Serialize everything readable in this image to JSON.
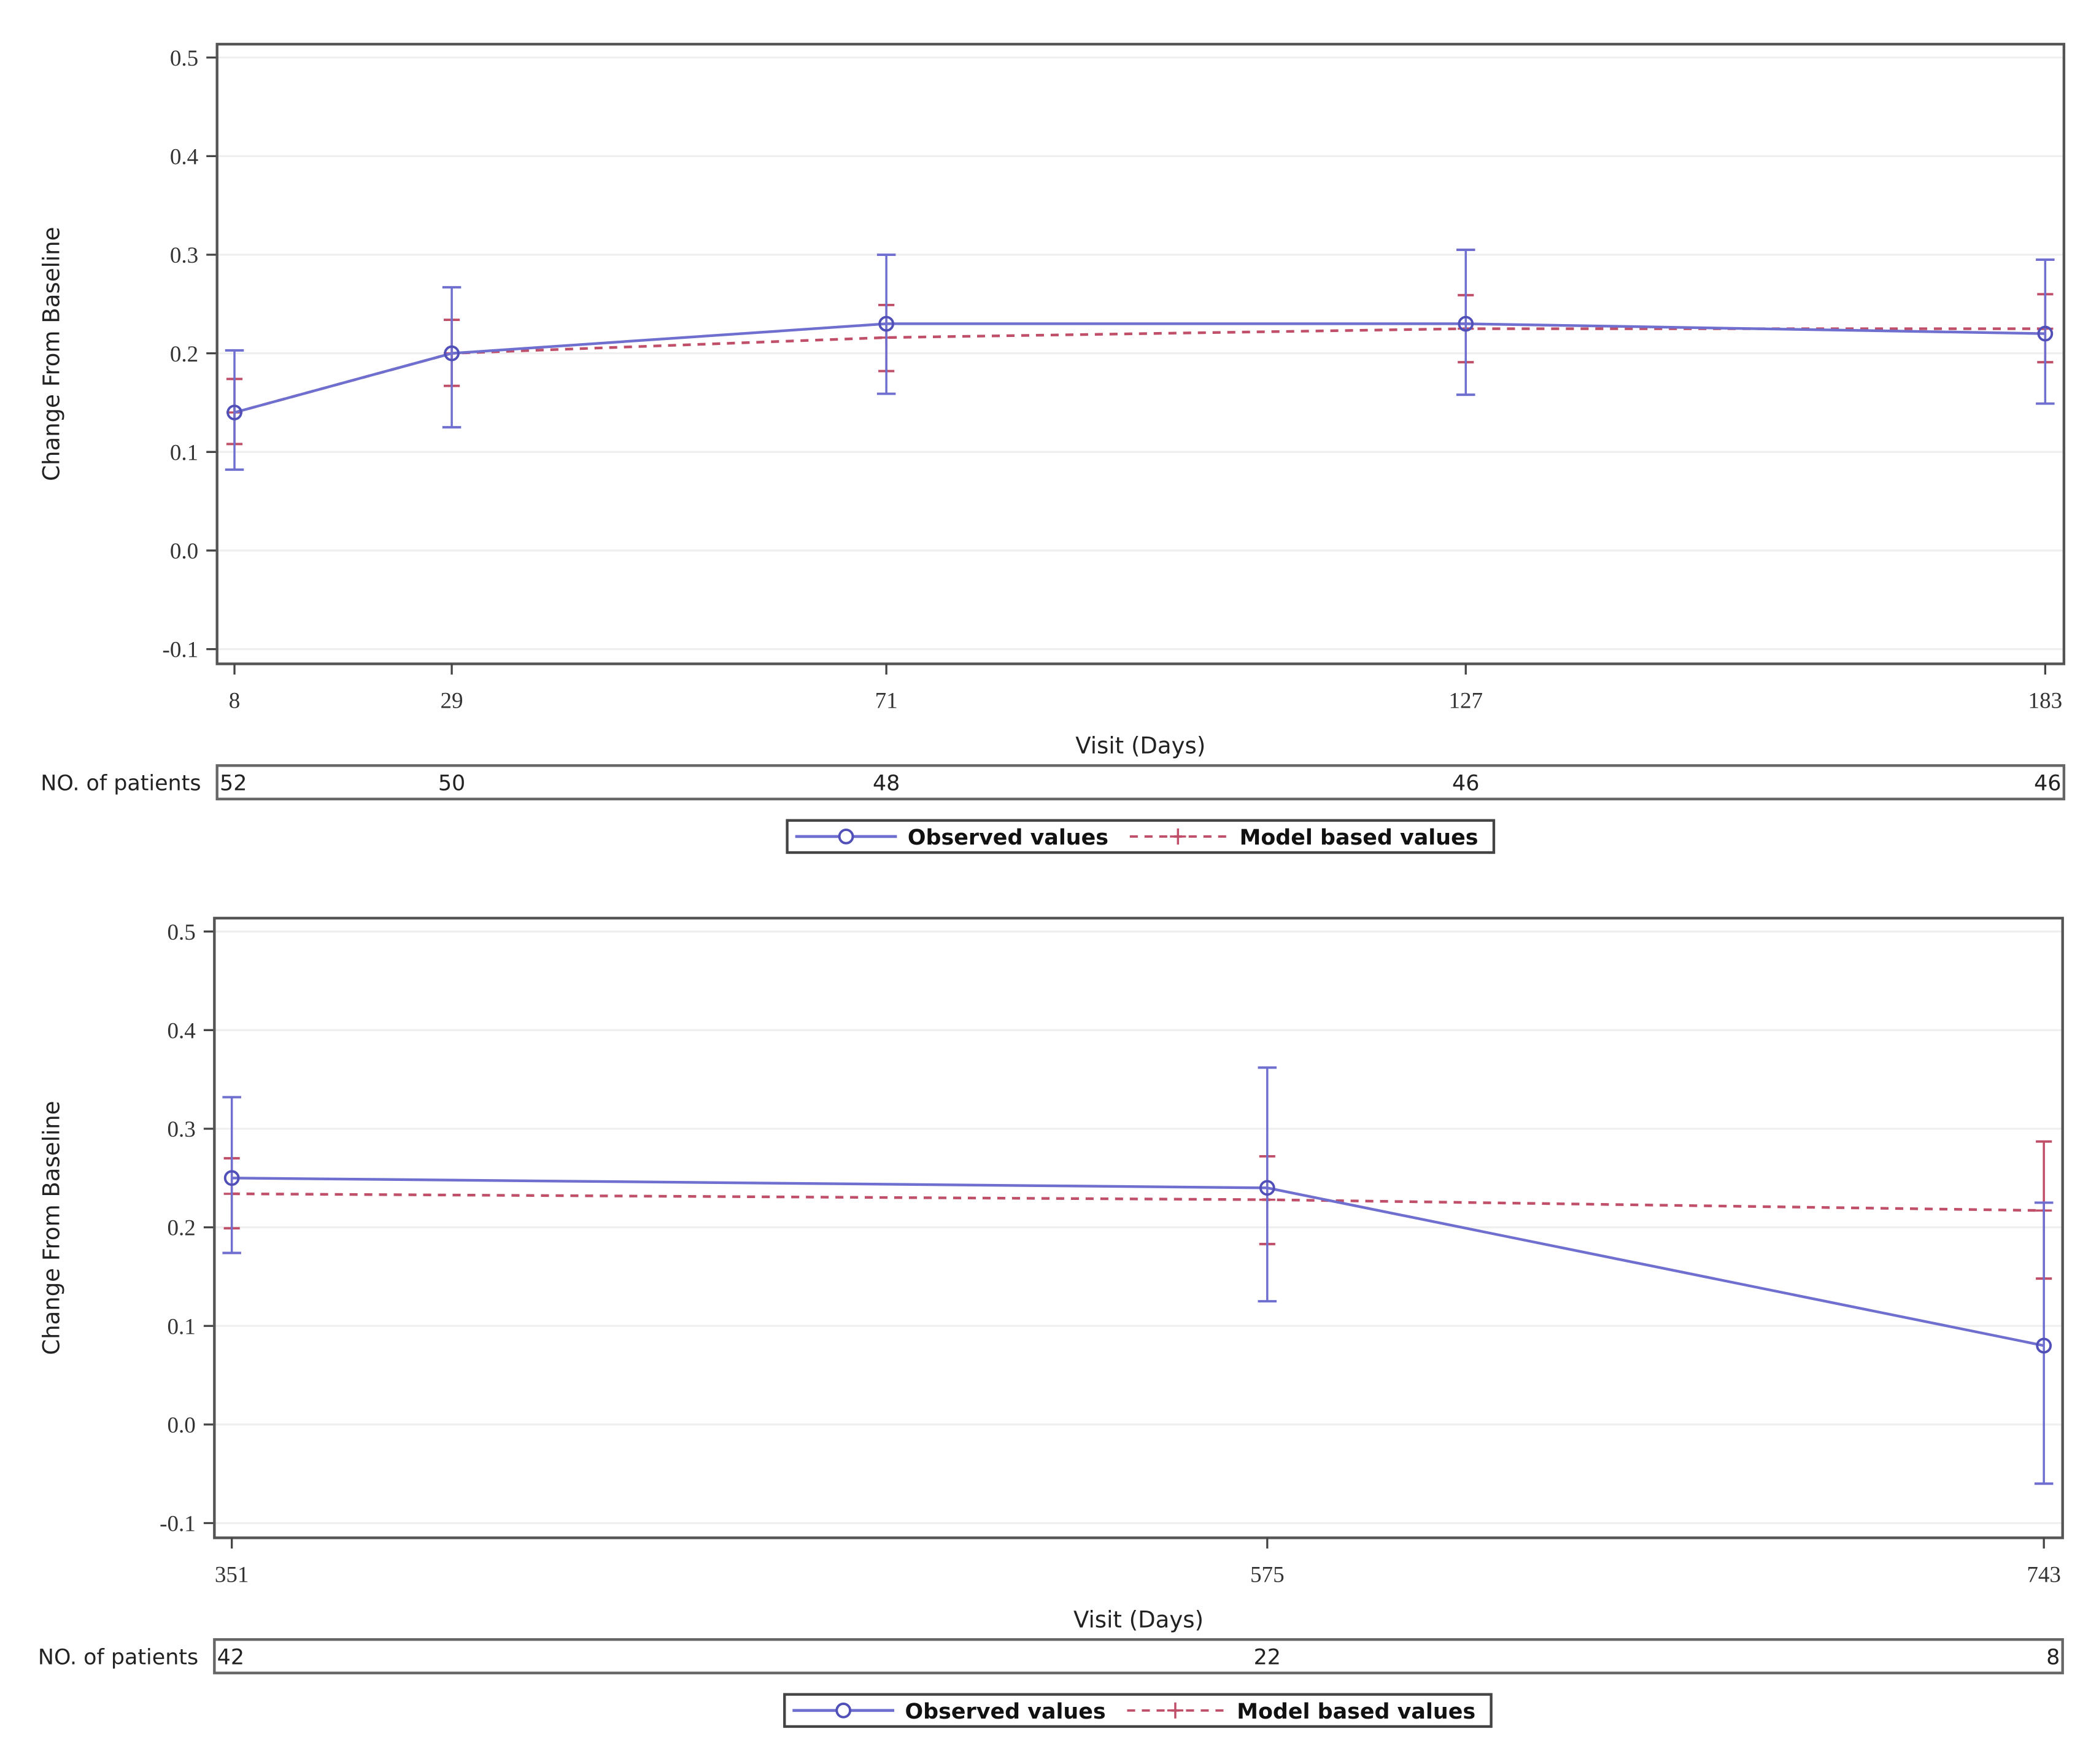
{
  "chart_data": [
    {
      "type": "line",
      "xlabel": "Visit (Days)",
      "ylabel": "Change From Baseline",
      "ylim": [
        -0.1,
        0.5
      ],
      "yticks": [
        "-0.1",
        "0.0",
        "0.1",
        "0.2",
        "0.3",
        "0.4",
        "0.5"
      ],
      "x": [
        8,
        29,
        71,
        127,
        183
      ],
      "xlim": [
        8,
        183
      ],
      "grid": true,
      "legend_position": "bottom",
      "patients_label": "NO. of patients",
      "patients": [
        "52",
        "50",
        "48",
        "46",
        "46"
      ],
      "series": [
        {
          "name": "Observed values",
          "color": "#6f6fd0",
          "style": "solid",
          "marker": "circle",
          "values": [
            0.14,
            0.2,
            0.23,
            0.23,
            0.22
          ],
          "lower": [
            0.082,
            0.125,
            0.159,
            0.158,
            0.149
          ],
          "upper": [
            0.203,
            0.267,
            0.3,
            0.305,
            0.295
          ]
        },
        {
          "name": "Model based values",
          "color": "#c0506a",
          "style": "dashed",
          "marker": "plus",
          "values": [
            0.14,
            0.2,
            0.216,
            0.225,
            0.225
          ],
          "lower": [
            0.108,
            0.167,
            0.182,
            0.191,
            0.191
          ],
          "upper": [
            0.174,
            0.234,
            0.249,
            0.259,
            0.26
          ]
        }
      ]
    },
    {
      "type": "line",
      "xlabel": "Visit (Days)",
      "ylabel": "Change From Baseline",
      "ylim": [
        -0.1,
        0.5
      ],
      "yticks": [
        "-0.1",
        "0.0",
        "0.1",
        "0.2",
        "0.3",
        "0.4",
        "0.5"
      ],
      "x": [
        351,
        575,
        743
      ],
      "xlim": [
        351,
        743
      ],
      "grid": true,
      "legend_position": "bottom",
      "patients_label": "NO. of patients",
      "patients": [
        "42",
        "22",
        "8"
      ],
      "series": [
        {
          "name": "Observed values",
          "color": "#6f6fd0",
          "style": "solid",
          "marker": "circle",
          "values": [
            0.25,
            0.24,
            0.08
          ],
          "lower": [
            0.174,
            0.125,
            -0.06
          ],
          "upper": [
            0.332,
            0.362,
            0.225
          ]
        },
        {
          "name": "Model based values",
          "color": "#c0506a",
          "style": "dashed",
          "marker": "plus",
          "values": [
            0.234,
            0.228,
            0.217
          ],
          "lower": [
            0.199,
            0.183,
            0.148
          ],
          "upper": [
            0.27,
            0.272,
            0.287
          ]
        }
      ]
    }
  ]
}
